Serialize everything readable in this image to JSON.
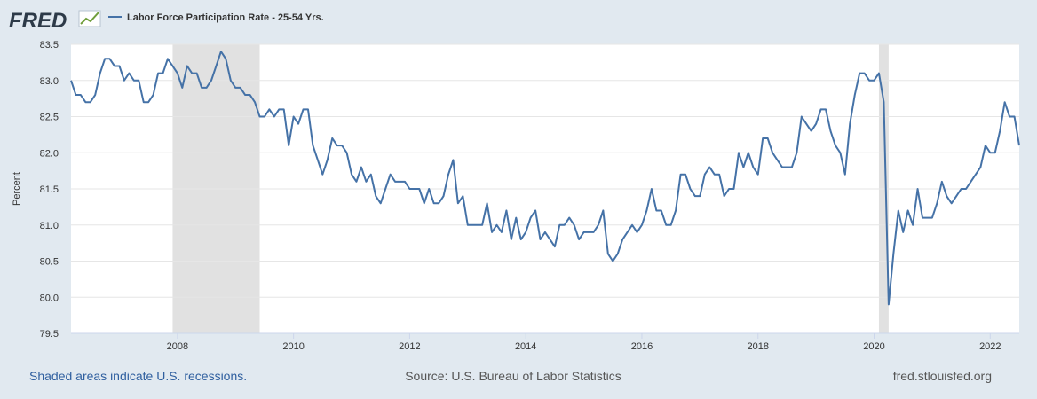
{
  "logo": "FRED",
  "chart_data": {
    "type": "line",
    "ylabel": "Percent",
    "grid": true,
    "legend_position": "top-left",
    "series": [
      {
        "name": "Labor Force Participation Rate - 25-54 Yrs.",
        "color": "#4572a7",
        "values": [
          83.0,
          82.8,
          82.8,
          82.7,
          82.7,
          82.8,
          83.1,
          83.3,
          83.3,
          83.2,
          83.2,
          83.0,
          83.1,
          83.0,
          83.0,
          82.7,
          82.7,
          82.8,
          83.1,
          83.1,
          83.3,
          83.2,
          83.1,
          82.9,
          83.2,
          83.1,
          83.1,
          82.9,
          82.9,
          83.0,
          83.2,
          83.4,
          83.3,
          83.0,
          82.9,
          82.9,
          82.8,
          82.8,
          82.7,
          82.5,
          82.5,
          82.6,
          82.5,
          82.6,
          82.6,
          82.1,
          82.5,
          82.4,
          82.6,
          82.6,
          82.1,
          81.9,
          81.7,
          81.9,
          82.2,
          82.1,
          82.1,
          82.0,
          81.7,
          81.6,
          81.8,
          81.6,
          81.7,
          81.4,
          81.3,
          81.5,
          81.7,
          81.6,
          81.6,
          81.6,
          81.5,
          81.5,
          81.5,
          81.3,
          81.5,
          81.3,
          81.3,
          81.4,
          81.7,
          81.9,
          81.3,
          81.4,
          81.0,
          81.0,
          81.0,
          81.0,
          81.3,
          80.9,
          81.0,
          80.9,
          81.2,
          80.8,
          81.1,
          80.8,
          80.9,
          81.1,
          81.2,
          80.8,
          80.9,
          80.8,
          80.7,
          81.0,
          81.0,
          81.1,
          81.0,
          80.8,
          80.9,
          80.9,
          80.9,
          81.0,
          81.2,
          80.6,
          80.5,
          80.6,
          80.8,
          80.9,
          81.0,
          80.9,
          81.0,
          81.2,
          81.5,
          81.2,
          81.2,
          81.0,
          81.0,
          81.2,
          81.7,
          81.7,
          81.5,
          81.4,
          81.4,
          81.7,
          81.8,
          81.7,
          81.7,
          81.4,
          81.5,
          81.5,
          82.0,
          81.8,
          82.0,
          81.8,
          81.7,
          82.2,
          82.2,
          82.0,
          81.9,
          81.8,
          81.8,
          81.8,
          82.0,
          82.5,
          82.4,
          82.3,
          82.4,
          82.6,
          82.6,
          82.3,
          82.1,
          82.0,
          81.7,
          82.4,
          82.8,
          83.1,
          83.1,
          83.0,
          83.0,
          83.1,
          82.7,
          79.9,
          80.6,
          81.2,
          80.9,
          81.2,
          81.0,
          81.5,
          81.1,
          81.1,
          81.1,
          81.3,
          81.6,
          81.4,
          81.3,
          81.4,
          81.5,
          81.5,
          81.6,
          81.7,
          81.8,
          82.1,
          82.0,
          82.0,
          82.3,
          82.7,
          82.5,
          82.5,
          82.1
        ]
      }
    ],
    "x": [
      2006.167,
      2006.25,
      2006.333,
      2006.417,
      2006.5,
      2006.583,
      2006.667,
      2006.75,
      2006.833,
      2006.917,
      2007,
      2007.083,
      2007.167,
      2007.25,
      2007.333,
      2007.417,
      2007.5,
      2007.583,
      2007.667,
      2007.75,
      2007.833,
      2007.917,
      2008,
      2008.083,
      2008.167,
      2008.25,
      2008.333,
      2008.417,
      2008.5,
      2008.583,
      2008.667,
      2008.75,
      2008.833,
      2008.917,
      2009,
      2009.083,
      2009.167,
      2009.25,
      2009.333,
      2009.417,
      2009.5,
      2009.583,
      2009.667,
      2009.75,
      2009.833,
      2009.917,
      2010,
      2010.083,
      2010.167,
      2010.25,
      2010.333,
      2010.417,
      2010.5,
      2010.583,
      2010.667,
      2010.75,
      2010.833,
      2010.917,
      2011,
      2011.083,
      2011.167,
      2011.25,
      2011.333,
      2011.417,
      2011.5,
      2011.583,
      2011.667,
      2011.75,
      2011.833,
      2011.917,
      2012,
      2012.083,
      2012.167,
      2012.25,
      2012.333,
      2012.417,
      2012.5,
      2012.583,
      2012.667,
      2012.75,
      2012.833,
      2012.917,
      2013,
      2013.083,
      2013.167,
      2013.25,
      2013.333,
      2013.417,
      2013.5,
      2013.583,
      2013.667,
      2013.75,
      2013.833,
      2013.917,
      2014,
      2014.083,
      2014.167,
      2014.25,
      2014.333,
      2014.417,
      2014.5,
      2014.583,
      2014.667,
      2014.75,
      2014.833,
      2014.917,
      2015,
      2015.083,
      2015.167,
      2015.25,
      2015.333,
      2015.417,
      2015.5,
      2015.583,
      2015.667,
      2015.75,
      2015.833,
      2015.917,
      2016,
      2016.083,
      2016.167,
      2016.25,
      2016.333,
      2016.417,
      2016.5,
      2016.583,
      2016.667,
      2016.75,
      2016.833,
      2016.917,
      2017,
      2017.083,
      2017.167,
      2017.25,
      2017.333,
      2017.417,
      2017.5,
      2017.583,
      2017.667,
      2017.75,
      2017.833,
      2017.917,
      2018,
      2018.083,
      2018.167,
      2018.25,
      2018.333,
      2018.417,
      2018.5,
      2018.583,
      2018.667,
      2018.75,
      2018.833,
      2018.917,
      2019,
      2019.083,
      2019.167,
      2019.25,
      2019.333,
      2019.417,
      2019.5,
      2019.583,
      2019.667,
      2019.75,
      2019.833,
      2019.917,
      2020,
      2020.083,
      2020.167,
      2020.25,
      2020.333,
      2020.417,
      2020.5,
      2020.583,
      2020.667,
      2020.75,
      2020.833,
      2020.917,
      2021,
      2021.083,
      2021.167,
      2021.25,
      2021.333,
      2021.417,
      2021.5,
      2021.583,
      2021.667,
      2021.75,
      2021.833,
      2021.917,
      2022,
      2022.083,
      2022.167,
      2022.25,
      2022.333,
      2022.417,
      2022.5
    ],
    "recessions": [
      [
        2007.917,
        2009.417
      ],
      [
        2020.083,
        2020.25
      ]
    ],
    "recession_color": "#e1e1e1",
    "xlim": [
      2006.167,
      2022.5
    ],
    "xticks": [
      2008,
      2010,
      2012,
      2014,
      2016,
      2018,
      2020,
      2022
    ],
    "ylim": [
      79.5,
      83.5
    ],
    "yticks": [
      79.5,
      {
        "value": 80,
        "label": "80.0"
      },
      80.5,
      {
        "value": 81,
        "label": "81.0"
      },
      81.5,
      {
        "value": 82,
        "label": "82.0"
      },
      82.5,
      {
        "value": 83,
        "label": "83.0"
      },
      83.5
    ],
    "footnote": "Shaded areas indicate U.S. recessions.",
    "source": "Source: U.S. Bureau of Labor Statistics",
    "site": "fred.stlouisfed.org"
  }
}
